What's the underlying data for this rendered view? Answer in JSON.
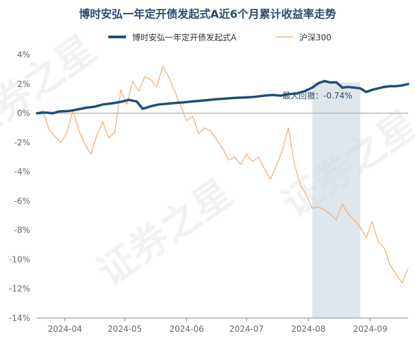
{
  "chart_data": {
    "type": "line",
    "title": "博时安弘一年定开债发起式A近6个月累计收益率走势",
    "y_ticks": [
      "4%",
      "2%",
      "0%",
      "-2%",
      "-4%",
      "-6%",
      "-8%",
      "-10%",
      "-12%",
      "-14%"
    ],
    "ylim": [
      -14,
      4
    ],
    "x_ticks": [
      {
        "date": "2024-04-01",
        "label": "2024-04"
      },
      {
        "date": "2024-05-01",
        "label": "2024-05"
      },
      {
        "date": "2024-06-01",
        "label": "2024-06"
      },
      {
        "date": "2024-07-01",
        "label": "2024-07"
      },
      {
        "date": "2024-08-01",
        "label": "2024-08"
      },
      {
        "date": "2024-09-01",
        "label": "2024-09"
      }
    ],
    "xlim": [
      "2024-03-18",
      "2024-09-20"
    ],
    "grid": false,
    "legend_position": "top",
    "drawdown": {
      "label": "最大回撤：-0.74%",
      "start": "2024-08-03",
      "end": "2024-08-27",
      "color": "#c8d3de"
    },
    "series": [
      {
        "name": "博时安弘一年定开债发起式A",
        "color": "#1f4e79",
        "points": [
          [
            "2024-03-18",
            0.0
          ],
          [
            "2024-03-22",
            0.05
          ],
          [
            "2024-03-26",
            0.0
          ],
          [
            "2024-03-29",
            0.12
          ],
          [
            "2024-04-03",
            0.15
          ],
          [
            "2024-04-08",
            0.28
          ],
          [
            "2024-04-12",
            0.38
          ],
          [
            "2024-04-16",
            0.45
          ],
          [
            "2024-04-20",
            0.6
          ],
          [
            "2024-04-25",
            0.68
          ],
          [
            "2024-04-29",
            0.78
          ],
          [
            "2024-05-03",
            0.92
          ],
          [
            "2024-05-07",
            0.8
          ],
          [
            "2024-05-10",
            0.3
          ],
          [
            "2024-05-14",
            0.48
          ],
          [
            "2024-05-18",
            0.6
          ],
          [
            "2024-05-22",
            0.65
          ],
          [
            "2024-05-26",
            0.7
          ],
          [
            "2024-05-31",
            0.75
          ],
          [
            "2024-06-05",
            0.82
          ],
          [
            "2024-06-10",
            0.88
          ],
          [
            "2024-06-15",
            0.95
          ],
          [
            "2024-06-20",
            1.0
          ],
          [
            "2024-06-25",
            1.05
          ],
          [
            "2024-06-30",
            1.08
          ],
          [
            "2024-07-05",
            1.12
          ],
          [
            "2024-07-10",
            1.2
          ],
          [
            "2024-07-14",
            1.25
          ],
          [
            "2024-07-18",
            1.2
          ],
          [
            "2024-07-22",
            1.3
          ],
          [
            "2024-07-26",
            1.35
          ],
          [
            "2024-07-30",
            1.5
          ],
          [
            "2024-08-03",
            1.75
          ],
          [
            "2024-08-06",
            2.05
          ],
          [
            "2024-08-09",
            2.2
          ],
          [
            "2024-08-12",
            2.1
          ],
          [
            "2024-08-15",
            2.12
          ],
          [
            "2024-08-18",
            1.75
          ],
          [
            "2024-08-21",
            1.8
          ],
          [
            "2024-08-24",
            1.75
          ],
          [
            "2024-08-27",
            1.7
          ],
          [
            "2024-08-30",
            1.45
          ],
          [
            "2024-09-02",
            1.6
          ],
          [
            "2024-09-05",
            1.7
          ],
          [
            "2024-09-08",
            1.8
          ],
          [
            "2024-09-11",
            1.85
          ],
          [
            "2024-09-14",
            1.85
          ],
          [
            "2024-09-17",
            1.9
          ],
          [
            "2024-09-20",
            2.0
          ]
        ]
      },
      {
        "name": "沪深300",
        "color": "#f0b07a",
        "points": [
          [
            "2024-03-18",
            0.0
          ],
          [
            "2024-03-21",
            0.2
          ],
          [
            "2024-03-24",
            -1.1
          ],
          [
            "2024-03-27",
            -1.6
          ],
          [
            "2024-03-30",
            -2.0
          ],
          [
            "2024-04-02",
            -1.3
          ],
          [
            "2024-04-05",
            0.2
          ],
          [
            "2024-04-08",
            -1.2
          ],
          [
            "2024-04-11",
            -2.1
          ],
          [
            "2024-04-14",
            -2.8
          ],
          [
            "2024-04-17",
            -1.5
          ],
          [
            "2024-04-20",
            -0.6
          ],
          [
            "2024-04-23",
            -1.7
          ],
          [
            "2024-04-26",
            -1.3
          ],
          [
            "2024-04-29",
            1.6
          ],
          [
            "2024-05-02",
            0.6
          ],
          [
            "2024-05-05",
            2.2
          ],
          [
            "2024-05-08",
            1.5
          ],
          [
            "2024-05-11",
            2.5
          ],
          [
            "2024-05-14",
            2.3
          ],
          [
            "2024-05-17",
            1.8
          ],
          [
            "2024-05-20",
            3.2
          ],
          [
            "2024-05-23",
            2.5
          ],
          [
            "2024-05-26",
            1.5
          ],
          [
            "2024-05-29",
            0.5
          ],
          [
            "2024-06-01",
            -0.5
          ],
          [
            "2024-06-04",
            -0.2
          ],
          [
            "2024-06-07",
            -1.4
          ],
          [
            "2024-06-10",
            -1.0
          ],
          [
            "2024-06-13",
            -1.2
          ],
          [
            "2024-06-16",
            -1.8
          ],
          [
            "2024-06-19",
            -2.4
          ],
          [
            "2024-06-22",
            -3.2
          ],
          [
            "2024-06-25",
            -3.0
          ],
          [
            "2024-06-28",
            -3.5
          ],
          [
            "2024-07-01",
            -2.8
          ],
          [
            "2024-07-04",
            -3.3
          ],
          [
            "2024-07-07",
            -3.0
          ],
          [
            "2024-07-10",
            -3.8
          ],
          [
            "2024-07-13",
            -4.5
          ],
          [
            "2024-07-16",
            -3.6
          ],
          [
            "2024-07-19",
            -2.5
          ],
          [
            "2024-07-22",
            -1.0
          ],
          [
            "2024-07-25",
            -3.5
          ],
          [
            "2024-07-28",
            -4.9
          ],
          [
            "2024-07-31",
            -5.6
          ],
          [
            "2024-08-03",
            -6.5
          ],
          [
            "2024-08-06",
            -6.4
          ],
          [
            "2024-08-09",
            -6.6
          ],
          [
            "2024-08-12",
            -6.9
          ],
          [
            "2024-08-15",
            -7.3
          ],
          [
            "2024-08-18",
            -6.2
          ],
          [
            "2024-08-21",
            -6.9
          ],
          [
            "2024-08-24",
            -7.3
          ],
          [
            "2024-08-27",
            -7.8
          ],
          [
            "2024-08-30",
            -8.5
          ],
          [
            "2024-09-02",
            -7.4
          ],
          [
            "2024-09-05",
            -8.8
          ],
          [
            "2024-09-08",
            -9.2
          ],
          [
            "2024-09-11",
            -10.4
          ],
          [
            "2024-09-14",
            -11.0
          ],
          [
            "2024-09-17",
            -11.6
          ],
          [
            "2024-09-20",
            -10.6
          ]
        ]
      }
    ]
  },
  "watermark": "证券之星"
}
